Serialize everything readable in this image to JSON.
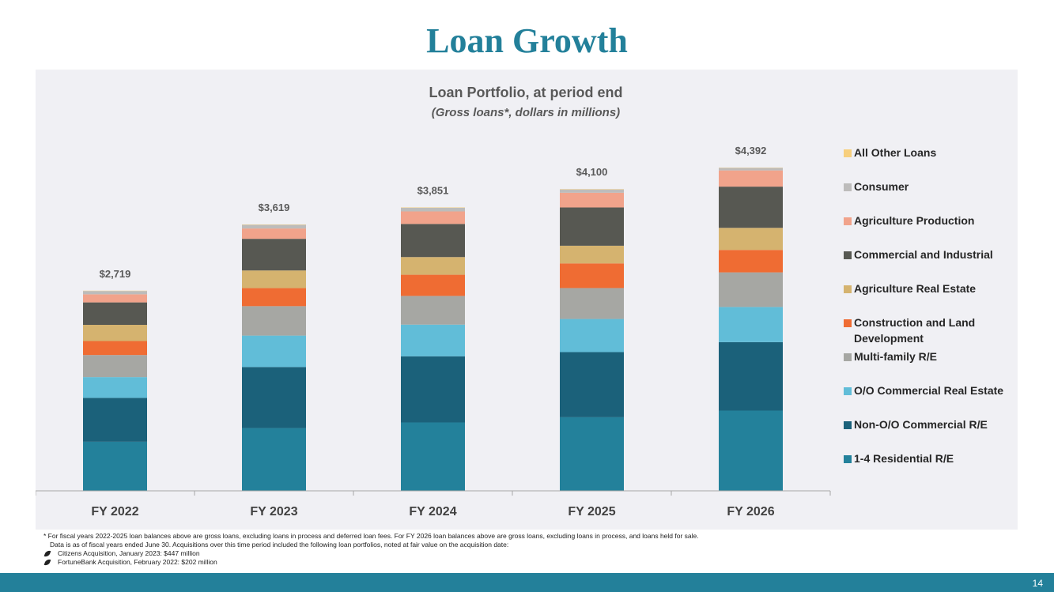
{
  "slide": {
    "title": "Loan Growth",
    "page_number": "14"
  },
  "footnotes": {
    "line1": "* For fiscal years 2022-2025 loan balances above are gross loans, excluding loans in process and deferred loan fees. For FY 2026 loan balances above are gross loans, excluding loans in process, and loans held for sale.",
    "line2": "Data is as of fiscal years ended June 30.  Acquisitions over this time period included the following loan portfolios, noted at fair value on the acquisition date:",
    "bullets": [
      "Citizens Acquisition, January 2023: $447 million",
      "FortuneBank Acquisition, February 2022: $202 million"
    ]
  },
  "chart_data": {
    "type": "bar",
    "stacked": true,
    "title": "Loan Portfolio, at period end",
    "subtitle": "(Gross loans*, dollars in millions)",
    "categories": [
      "FY 2022",
      "FY 2023",
      "FY 2024",
      "FY 2025",
      "FY 2026"
    ],
    "totals_labels": [
      "$2,719",
      "$3,619",
      "$3,851",
      "$4,100",
      "$4,392"
    ],
    "totals": [
      2719,
      3619,
      3851,
      4100,
      4392
    ],
    "ylim": [
      0,
      4392
    ],
    "legend_position": "right",
    "grid": false,
    "series": [
      {
        "name": "1-4 Residential R/E",
        "color": "#23819b",
        "values": [
          667,
          853,
          929,
          1000,
          1090
        ]
      },
      {
        "name": "Non-O/O Commercial R/E",
        "color": "#1b617a",
        "values": [
          596,
          829,
          899,
          885,
          930
        ]
      },
      {
        "name": "O/O Commercial Real Estate",
        "color": "#61bdd8",
        "values": [
          282,
          427,
          430,
          450,
          478
        ]
      },
      {
        "name": "Multi-family R/E",
        "color": "#a6a7a3",
        "values": [
          300,
          400,
          390,
          420,
          470
        ]
      },
      {
        "name": "Construction and Land Development",
        "color": "#ef6c33",
        "values": [
          190,
          245,
          288,
          335,
          305
        ]
      },
      {
        "name": "Agriculture Real Estate",
        "color": "#d5b36f",
        "values": [
          220,
          240,
          240,
          240,
          300
        ]
      },
      {
        "name": "Commercial and Industrial",
        "color": "#575852",
        "values": [
          305,
          430,
          450,
          520,
          560
        ]
      },
      {
        "name": "Agriculture Production",
        "color": "#f1a38b",
        "values": [
          110,
          140,
          170,
          200,
          220
        ]
      },
      {
        "name": "Consumer",
        "color": "#bdbcbb",
        "values": [
          45,
          50,
          50,
          45,
          35
        ]
      },
      {
        "name": "All Other Loans",
        "color": "#f7cf7d",
        "values": [
          4,
          5,
          5,
          5,
          4
        ]
      }
    ]
  }
}
